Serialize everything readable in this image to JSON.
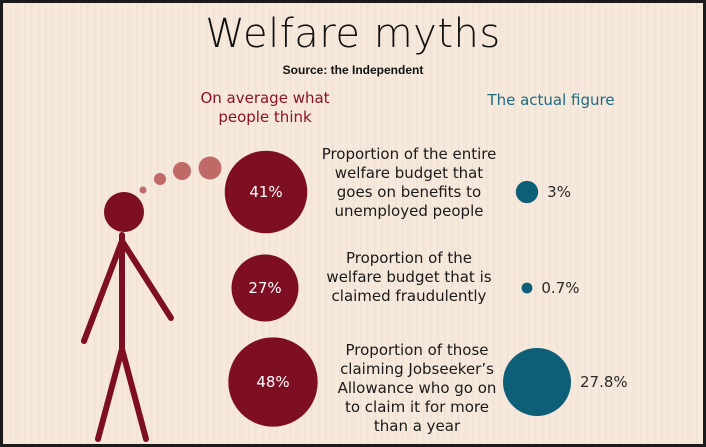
{
  "title": "Welfare myths",
  "source": "Source: the Independent",
  "columns": {
    "think": "On average what people think",
    "actual": "The actual figure"
  },
  "colors": {
    "think": "#7e0f22",
    "actual": "#0c5f77",
    "thought_bubble": "#c06a68"
  },
  "rows": [
    {
      "description": "Proportion of the entire welfare budget that goes on benefits to unemployed people"
    },
    {
      "description": "Proportion of the welfare budget that is claimed fraudulently"
    },
    {
      "description": "Proportion of those claiming Jobseeker’s Allowance who go on to claim it for more than a year"
    }
  ],
  "chart_data": {
    "type": "bubble",
    "title": "Welfare myths",
    "subtitle": "Source: the Independent",
    "categories": [
      "Proportion of the entire welfare budget that goes on benefits to unemployed people",
      "Proportion of the welfare budget that is claimed fraudulently",
      "Proportion of those claiming Jobseeker’s Allowance who go on to claim it for more than a year"
    ],
    "series": [
      {
        "name": "On average what people think",
        "values": [
          41,
          27,
          48
        ],
        "labels": [
          "41%",
          "27%",
          "48%"
        ]
      },
      {
        "name": "The actual figure",
        "values": [
          3,
          0.7,
          27.8
        ],
        "labels": [
          "3%",
          "0.7%",
          "27.8%"
        ]
      }
    ],
    "unit": "%"
  }
}
